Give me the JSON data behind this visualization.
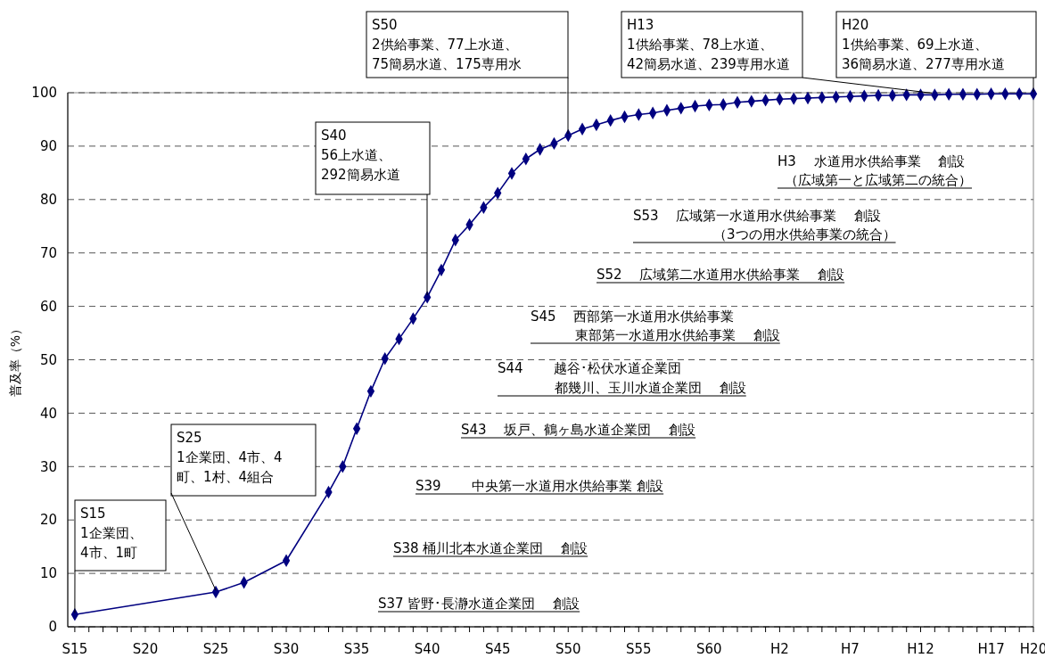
{
  "chart_data": {
    "type": "line",
    "ylabel": "普及率（%）",
    "categories": [
      "S15",
      null,
      null,
      null,
      null,
      "S20",
      null,
      null,
      null,
      null,
      "S25",
      null,
      null,
      null,
      null,
      "S30",
      null,
      null,
      null,
      null,
      "S35",
      null,
      null,
      null,
      null,
      "S40",
      null,
      null,
      null,
      null,
      "S45",
      null,
      null,
      null,
      null,
      "S50",
      null,
      null,
      null,
      null,
      "S55",
      null,
      null,
      null,
      null,
      "S60",
      null,
      null,
      null,
      null,
      "H2",
      null,
      null,
      null,
      null,
      "H7",
      null,
      null,
      null,
      null,
      "H12",
      null,
      null,
      null,
      null,
      "H17",
      null,
      null,
      "H20"
    ],
    "series": [
      {
        "color": "#000080",
        "values": [
          2.3,
          null,
          null,
          null,
          null,
          null,
          null,
          null,
          null,
          null,
          6.5,
          null,
          8.3,
          null,
          null,
          12.4,
          null,
          null,
          25.2,
          30.0,
          37.1,
          44.1,
          50.2,
          53.9,
          57.7,
          61.7,
          66.8,
          72.4,
          75.3,
          78.5,
          81.2,
          84.9,
          87.6,
          89.4,
          90.5,
          92.0,
          93.2,
          94.0,
          94.8,
          95.5,
          95.9,
          96.2,
          96.7,
          97.1,
          97.5,
          97.7,
          97.8,
          98.2,
          98.4,
          98.6,
          98.8,
          98.9,
          99.0,
          99.1,
          99.2,
          99.3,
          99.4,
          99.5,
          99.5,
          99.6,
          99.6,
          99.6,
          99.7,
          99.7,
          99.7,
          99.8,
          99.8,
          99.8,
          99.8
        ]
      }
    ],
    "ylim": [
      0,
      100
    ],
    "yticks": [
      0,
      10,
      20,
      30,
      40,
      50,
      60,
      70,
      80,
      90,
      100
    ],
    "grid": "y",
    "marker": "diamond",
    "annotations": [
      {
        "text": "S15\n1企業団、\n4市、1町",
        "x": "S15",
        "y": 2.3
      },
      {
        "text": "S25\n1企業団、4市、4\n町、1村、4組合",
        "x": "S25",
        "y": 6.5
      },
      "S40\n56上水道、\n292簡易水道",
      "S50\n2供給事業、77上水道、\n75簡易水道、175専用水",
      {
        "text": "H13\n1供給事業、78上水道、\n42簡易水道、239専用水道",
        "y": 99.6
      },
      {
        "text": "H20\n1供給事業、69上水道、\n36簡易水道、277専用水道",
        "x": "H20",
        "y": 99.8
      },
      "H3　 水道用水供給事業　 創設",
      "（広域第一と広域第二の統合）",
      "S53　 広域第一水道用水供給事業　 創設",
      "（3つの用水供給事業の統合）",
      "S52　 広域第二水道用水供給事業　 創設",
      "S45　 西部第一水道用水供給事業",
      "東部第一水道用水供給事業　 創設",
      "S44　　 越谷･松伏水道企業団",
      "都幾川、玉川水道企業団　 創設",
      "S43　 坂戸、鶴ヶ島水道企業団　 創設",
      "S39　　 中央第一水道用水供給事業 創設",
      "S38 桶川北本水道企業団　 創設",
      "S37 皆野･長瀞水道企業団　 創設"
    ]
  }
}
